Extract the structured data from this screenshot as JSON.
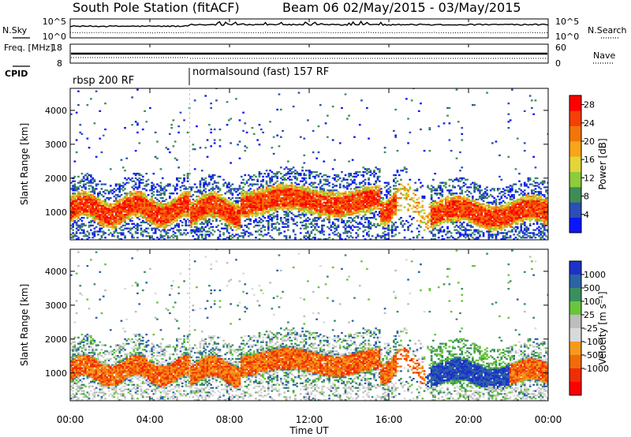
{
  "header": {
    "title": "South Pole Station (fitACF)",
    "subtitle": "Beam 06 02/May/2015 - 03/May/2015"
  },
  "colors": {
    "power_scale": [
      "#0b16ff",
      "#2b4fb6",
      "#3f8d56",
      "#8dcc3c",
      "#e3d43a",
      "#f8a51a",
      "#f2750a",
      "#f63f05",
      "#ff0000"
    ],
    "velocity_scale": [
      "#1d32c7",
      "#2c63a6",
      "#3a8f61",
      "#6bc43d",
      "#bdbdbd",
      "#d9d9d9",
      "#f59a1c",
      "#f26b0a",
      "#f12d05",
      "#ff0000"
    ]
  },
  "chart_data": [
    {
      "type": "line",
      "name": "nsky-nsearch-panel",
      "left_label": "N.Sky",
      "right_label": "N.Search",
      "left_ticks": [
        "10^5",
        "10^0"
      ],
      "right_ticks": [
        "10^5",
        "10^0"
      ],
      "x_range": [
        0,
        24
      ]
    },
    {
      "type": "line",
      "name": "freq-nave-panel",
      "left_label": "Freq. [MHz]",
      "right_label": "Nave",
      "left_ticks": [
        "18",
        "8"
      ],
      "right_ticks": [
        "60",
        "0"
      ],
      "x_range": [
        0,
        24
      ]
    },
    {
      "type": "table",
      "name": "cpid-panel",
      "label": "CPID",
      "segments": [
        {
          "start": 0,
          "end": 6,
          "text": "rbsp 200 RF"
        },
        {
          "start": 6,
          "end": 24,
          "text": "normalsound (fast) 157 RF"
        }
      ]
    },
    {
      "type": "heatmap",
      "name": "power-panel",
      "ylabel": "Slant Range [km]",
      "x_range": [
        0,
        24
      ],
      "ylim": [
        180,
        4650
      ],
      "y_ticks": [
        1000,
        2000,
        3000,
        4000
      ],
      "colorbar": {
        "label": "Power [dB]",
        "ticks": [
          "4",
          "8",
          "12",
          "16",
          "20",
          "24",
          "28"
        ],
        "range": [
          0,
          30
        ]
      }
    },
    {
      "type": "heatmap",
      "name": "velocity-panel",
      "ylabel": "Slant Range [km]",
      "xlabel": "Time UT",
      "x_range": [
        0,
        24
      ],
      "ylim": [
        180,
        4650
      ],
      "x_ticks": [
        "00:00",
        "04:00",
        "08:00",
        "12:00",
        "16:00",
        "20:00",
        "00:00"
      ],
      "y_ticks": [
        1000,
        2000,
        3000,
        4000
      ],
      "colorbar": {
        "label": "Velocity [m s⁻¹]",
        "ticks": [
          "1000",
          "500",
          "100",
          "25",
          "-25",
          "-100",
          "-500",
          "-1000"
        ]
      }
    }
  ]
}
